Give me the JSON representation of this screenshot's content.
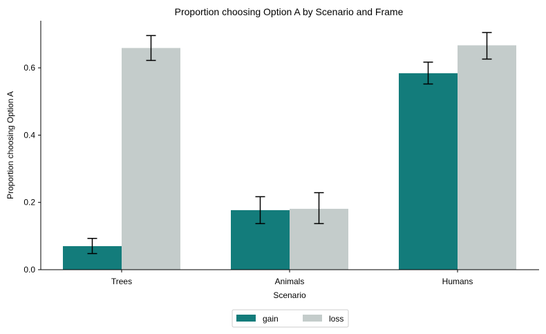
{
  "chart_data": {
    "type": "bar",
    "title": "Proportion choosing Option A by Scenario and Frame",
    "xlabel": "Scenario",
    "ylabel": "Proportion choosing Option A",
    "categories": [
      "Trees",
      "Animals",
      "Humans"
    ],
    "series": [
      {
        "name": "gain",
        "color": "#137c7b",
        "values": [
          0.07,
          0.177,
          0.584
        ],
        "err_low": [
          0.048,
          0.137,
          0.552
        ],
        "err_high": [
          0.093,
          0.217,
          0.617
        ]
      },
      {
        "name": "loss",
        "color": "#c4cccb",
        "values": [
          0.659,
          0.181,
          0.667
        ],
        "err_low": [
          0.622,
          0.137,
          0.626
        ],
        "err_high": [
          0.696,
          0.229,
          0.705
        ]
      }
    ],
    "ylim": [
      0,
      0.74
    ],
    "yticks": [
      0.0,
      0.2,
      0.4,
      0.6
    ],
    "ytick_labels": [
      "0.0",
      "0.2",
      "0.4",
      "0.6"
    ],
    "grid": false,
    "legend_position": "bottom-center"
  }
}
